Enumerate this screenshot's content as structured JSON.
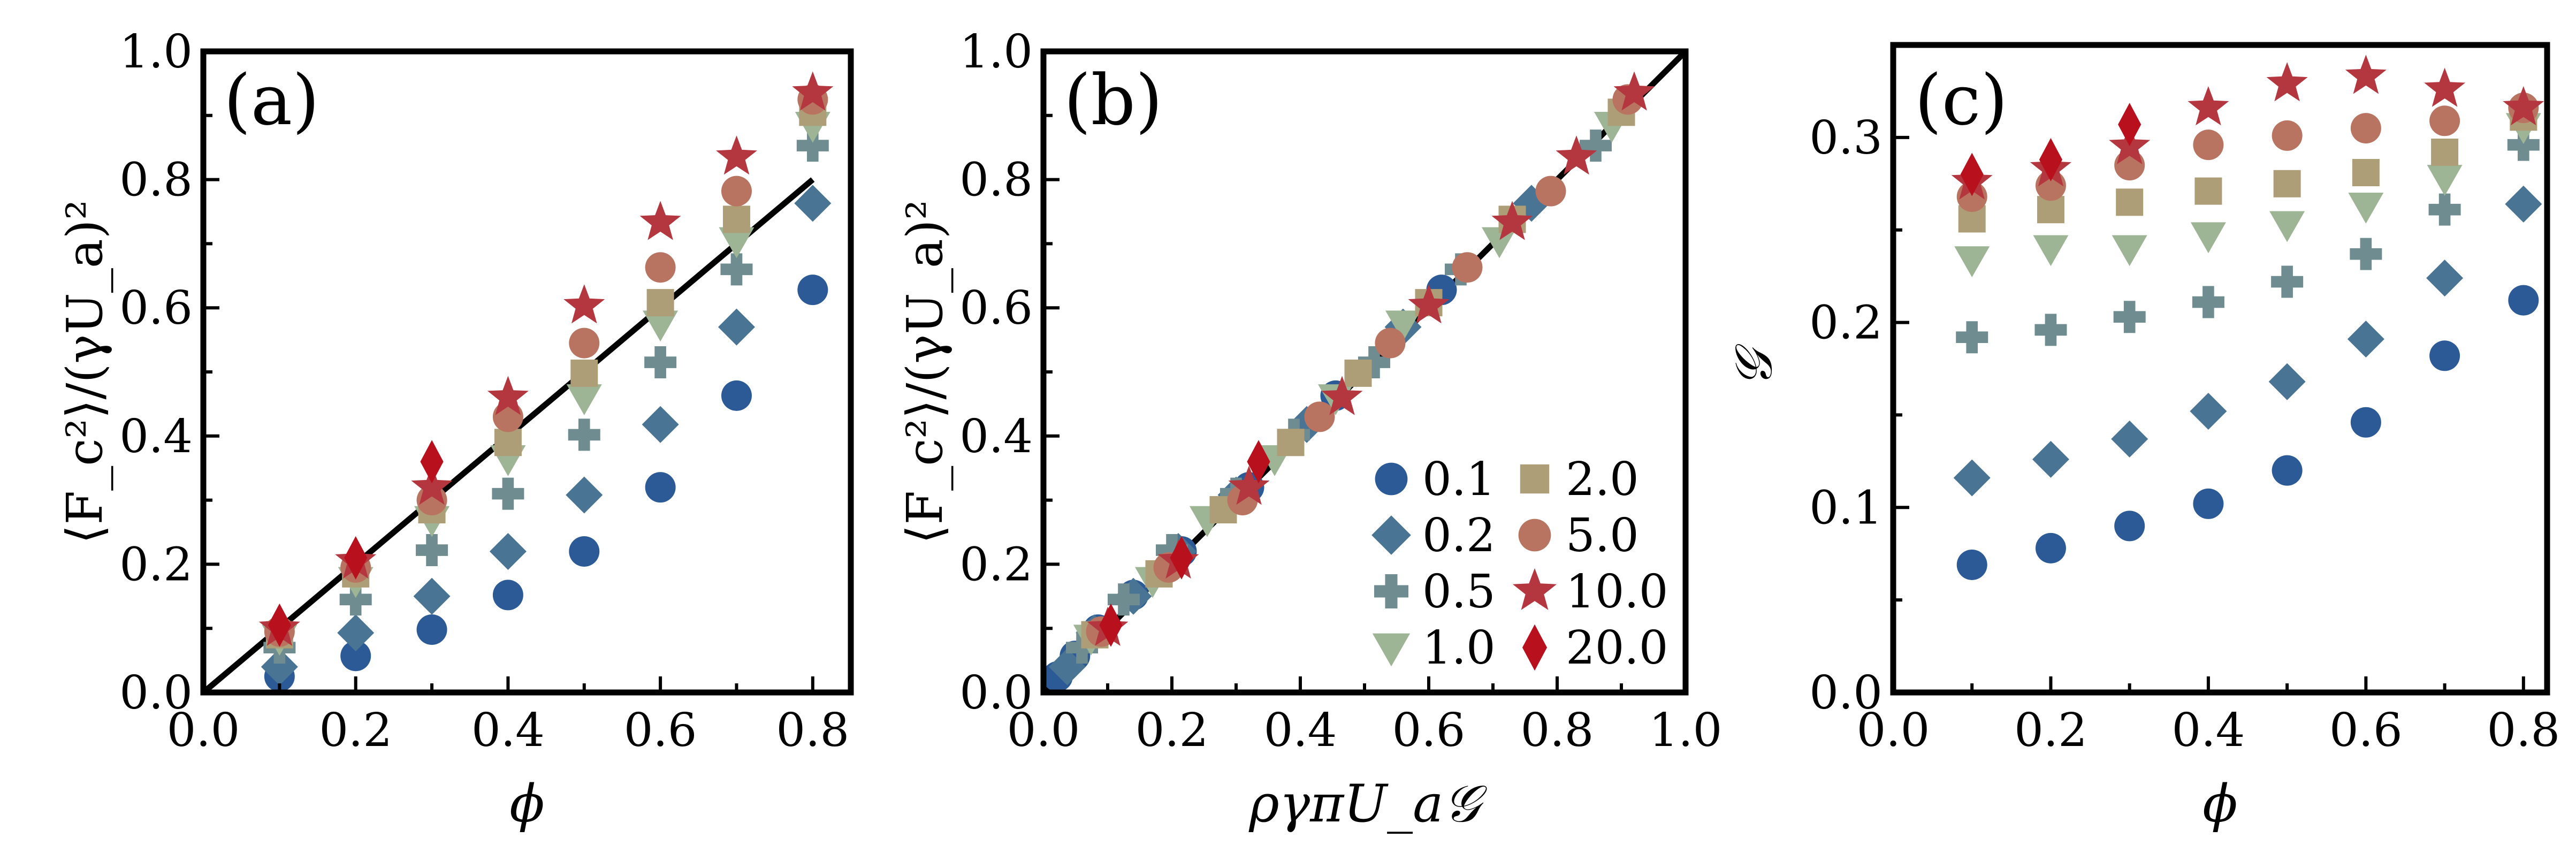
{
  "chart_data": [
    {
      "id": "a",
      "type": "scatter",
      "panel_label": "(a)",
      "xlabel": "ϕ",
      "ylabel": "⟨F_c²⟩/(γU_a)²",
      "xlim": [
        0.0,
        0.85
      ],
      "ylim": [
        0.0,
        1.0
      ],
      "xticks": [
        "0.0",
        "0.2",
        "0.4",
        "0.6",
        "0.8"
      ],
      "yticks": [
        "0.0",
        "0.2",
        "0.4",
        "0.6",
        "0.8",
        "1.0"
      ],
      "reference_line": {
        "from": [
          0.0,
          0.0
        ],
        "to": [
          0.8,
          0.8
        ]
      },
      "x": [
        0.1,
        0.2,
        0.3,
        0.4,
        0.5,
        0.6,
        0.7,
        0.8
      ],
      "series": [
        {
          "name": "0.1",
          "values": [
            0.025,
            0.057,
            0.098,
            0.152,
            0.22,
            0.32,
            0.463,
            0.628
          ]
        },
        {
          "name": "0.2",
          "values": [
            0.04,
            0.093,
            0.15,
            0.22,
            0.308,
            0.418,
            0.57,
            0.763
          ]
        },
        {
          "name": "0.5",
          "values": [
            0.07,
            0.145,
            0.222,
            0.31,
            0.402,
            0.515,
            0.66,
            0.853
          ]
        },
        {
          "name": "1.0",
          "values": [
            0.085,
            0.175,
            0.27,
            0.365,
            0.46,
            0.575,
            0.705,
            0.885
          ]
        },
        {
          "name": "2.0",
          "values": [
            0.09,
            0.185,
            0.285,
            0.39,
            0.498,
            0.608,
            0.738,
            0.905
          ]
        },
        {
          "name": "5.0",
          "values": [
            0.095,
            0.195,
            0.3,
            0.43,
            0.545,
            0.663,
            0.782,
            0.925
          ]
        },
        {
          "name": "10.0",
          "values": [
            0.1,
            0.205,
            0.32,
            0.46,
            0.603,
            0.733,
            0.835,
            0.935
          ]
        },
        {
          "name": "20.0",
          "values": [
            0.105,
            0.21,
            0.36,
            null,
            null,
            null,
            null,
            null
          ]
        }
      ]
    },
    {
      "id": "b",
      "type": "scatter",
      "panel_label": "(b)",
      "xlabel": "ργπU_a𝒢",
      "ylabel": "⟨F_c²⟩/(γU_a)²",
      "xlim": [
        0.0,
        1.0
      ],
      "ylim": [
        0.0,
        1.0
      ],
      "xticks": [
        "0.0",
        "0.2",
        "0.4",
        "0.6",
        "0.8",
        "1.0"
      ],
      "yticks": [
        "0.0",
        "0.2",
        "0.4",
        "0.6",
        "0.8",
        "1.0"
      ],
      "reference_line": {
        "from": [
          0.0,
          0.0
        ],
        "to": [
          1.0,
          1.0
        ]
      },
      "series": [
        {
          "name": "0.1",
          "points": [
            [
              0.022,
              0.025
            ],
            [
              0.049,
              0.057
            ],
            [
              0.085,
              0.098
            ],
            [
              0.14,
              0.152
            ],
            [
              0.215,
              0.22
            ],
            [
              0.32,
              0.32
            ],
            [
              0.455,
              0.463
            ],
            [
              0.62,
              0.628
            ]
          ]
        },
        {
          "name": "0.2",
          "points": [
            [
              0.037,
              0.04
            ],
            [
              0.079,
              0.093
            ],
            [
              0.14,
              0.15
            ],
            [
              0.21,
              0.22
            ],
            [
              0.3,
              0.308
            ],
            [
              0.41,
              0.418
            ],
            [
              0.56,
              0.57
            ],
            [
              0.76,
              0.763
            ]
          ]
        },
        {
          "name": "0.5",
          "points": [
            [
              0.06,
              0.07
            ],
            [
              0.125,
              0.145
            ],
            [
              0.2,
              0.222
            ],
            [
              0.3,
              0.31
            ],
            [
              0.39,
              0.402
            ],
            [
              0.515,
              0.515
            ],
            [
              0.65,
              0.66
            ],
            [
              0.86,
              0.853
            ]
          ]
        },
        {
          "name": "1.0",
          "points": [
            [
              0.074,
              0.085
            ],
            [
              0.17,
              0.175
            ],
            [
              0.255,
              0.27
            ],
            [
              0.36,
              0.365
            ],
            [
              0.455,
              0.46
            ],
            [
              0.56,
              0.575
            ],
            [
              0.71,
              0.705
            ],
            [
              0.885,
              0.885
            ]
          ]
        },
        {
          "name": "2.0",
          "points": [
            [
              0.08,
              0.09
            ],
            [
              0.18,
              0.185
            ],
            [
              0.28,
              0.285
            ],
            [
              0.385,
              0.39
            ],
            [
              0.49,
              0.498
            ],
            [
              0.6,
              0.608
            ],
            [
              0.73,
              0.738
            ],
            [
              0.9,
              0.905
            ]
          ]
        },
        {
          "name": "5.0",
          "points": [
            [
              0.09,
              0.095
            ],
            [
              0.195,
              0.195
            ],
            [
              0.31,
              0.3
            ],
            [
              0.43,
              0.43
            ],
            [
              0.54,
              0.545
            ],
            [
              0.66,
              0.663
            ],
            [
              0.79,
              0.782
            ],
            [
              0.91,
              0.925
            ]
          ]
        },
        {
          "name": "10.0",
          "points": [
            [
              0.1,
              0.1
            ],
            [
              0.21,
              0.205
            ],
            [
              0.32,
              0.32
            ],
            [
              0.465,
              0.46
            ],
            [
              0.6,
              0.603
            ],
            [
              0.73,
              0.733
            ],
            [
              0.83,
              0.835
            ],
            [
              0.92,
              0.935
            ]
          ]
        },
        {
          "name": "20.0",
          "points": [
            [
              0.105,
              0.105
            ],
            [
              0.215,
              0.21
            ],
            [
              0.335,
              0.36
            ]
          ]
        }
      ]
    },
    {
      "id": "c",
      "type": "scatter",
      "panel_label": "(c)",
      "xlabel": "ϕ",
      "ylabel": "𝒢",
      "xlim": [
        0.0,
        0.83
      ],
      "ylim": [
        0.0,
        0.35
      ],
      "xticks": [
        "0.0",
        "0.2",
        "0.4",
        "0.6",
        "0.8"
      ],
      "yticks": [
        "0.0",
        "0.1",
        "0.2",
        "0.3"
      ],
      "x": [
        0.1,
        0.2,
        0.3,
        0.4,
        0.5,
        0.6,
        0.7,
        0.8
      ],
      "series": [
        {
          "name": "0.1",
          "values": [
            0.069,
            0.078,
            0.09,
            0.102,
            0.12,
            0.146,
            0.182,
            0.212
          ]
        },
        {
          "name": "0.2",
          "values": [
            0.116,
            0.126,
            0.137,
            0.152,
            0.168,
            0.191,
            0.224,
            0.264
          ]
        },
        {
          "name": "0.5",
          "values": [
            0.192,
            0.196,
            0.203,
            0.211,
            0.222,
            0.237,
            0.261,
            0.296
          ]
        },
        {
          "name": "1.0",
          "values": [
            0.234,
            0.24,
            0.24,
            0.247,
            0.253,
            0.263,
            0.278,
            0.306
          ]
        },
        {
          "name": "2.0",
          "values": [
            0.256,
            0.261,
            0.265,
            0.271,
            0.275,
            0.281,
            0.292,
            0.311
          ]
        },
        {
          "name": "5.0",
          "values": [
            0.268,
            0.274,
            0.285,
            0.296,
            0.301,
            0.305,
            0.309,
            0.316
          ]
        },
        {
          "name": "10.0",
          "values": [
            0.276,
            0.283,
            0.295,
            0.316,
            0.329,
            0.333,
            0.326,
            0.316
          ]
        },
        {
          "name": "20.0",
          "values": [
            0.28,
            0.288,
            0.307,
            null,
            null,
            null,
            null,
            null
          ]
        }
      ]
    }
  ],
  "legend": {
    "panel": "b",
    "placement": "bottom-right",
    "entries": [
      {
        "label": "0.1",
        "marker": "circle",
        "color": "#2b5a96"
      },
      {
        "label": "2.0",
        "marker": "square",
        "color": "#ad9e77"
      },
      {
        "label": "0.2",
        "marker": "diamond",
        "color": "#4a7494"
      },
      {
        "label": "5.0",
        "marker": "circle",
        "color": "#b97361"
      },
      {
        "label": "0.5",
        "marker": "plus",
        "color": "#6f8d91"
      },
      {
        "label": "10.0",
        "marker": "star",
        "color": "#b4373f"
      },
      {
        "label": "1.0",
        "marker": "triangle-down",
        "color": "#9db495"
      },
      {
        "label": "20.0",
        "marker": "thin-diamond",
        "color": "#b8101d"
      }
    ]
  },
  "series_style": {
    "0.1": {
      "marker": "circle",
      "color": "#2b5a96"
    },
    "0.2": {
      "marker": "diamond",
      "color": "#4a7494"
    },
    "0.5": {
      "marker": "plus",
      "color": "#6f8d91"
    },
    "1.0": {
      "marker": "triangle-down",
      "color": "#9db495"
    },
    "2.0": {
      "marker": "square",
      "color": "#ad9e77"
    },
    "5.0": {
      "marker": "circle",
      "color": "#b97361"
    },
    "10.0": {
      "marker": "star",
      "color": "#b4373f"
    },
    "20.0": {
      "marker": "thin-diamond",
      "color": "#b8101d"
    }
  }
}
